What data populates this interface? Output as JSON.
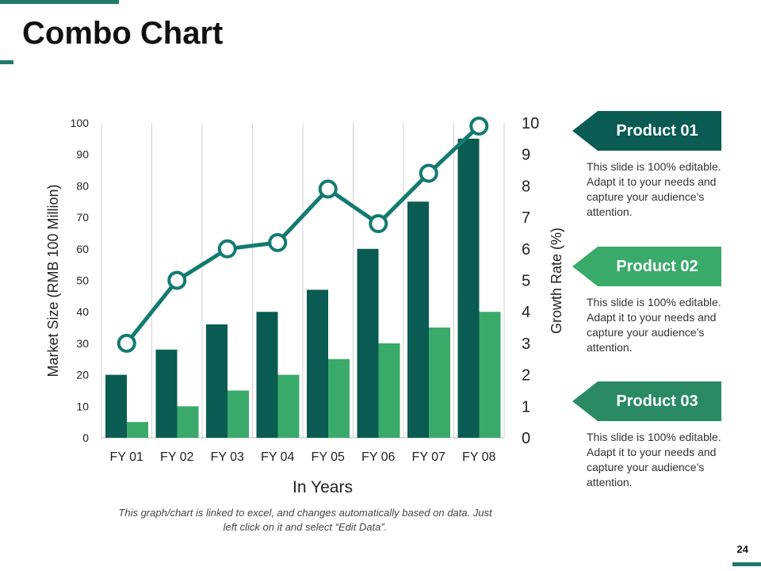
{
  "slide": {
    "title": "Combo Chart",
    "caption": "This graph/chart is linked to excel, and changes automatically based on data. Just left click on it and select “Edit Data”.",
    "page_number": "24"
  },
  "products": [
    {
      "label": "Product 01",
      "text": "This slide is 100% editable. Adapt it to your needs and capture your audience’s attention."
    },
    {
      "label": "Product 02",
      "text": "This slide is 100% editable. Adapt it to your needs and capture your audience’s attention."
    },
    {
      "label": "Product 03",
      "text": "This slide is 100% editable. Adapt it to your needs and capture your audience’s attention."
    }
  ],
  "colors": {
    "dark": "#0a5c52",
    "light": "#3aaa6a",
    "line": "#137a70",
    "accent": "#1e7b6b"
  },
  "chart_data": {
    "type": "bar",
    "title": "",
    "categories": [
      "FY 01",
      "FY 02",
      "FY 03",
      "FY 04",
      "FY 05",
      "FY 06",
      "FY 07",
      "FY 08"
    ],
    "series": [
      {
        "name": "Product 01",
        "type": "bar",
        "axis": "left",
        "values": [
          20,
          28,
          36,
          40,
          47,
          60,
          75,
          95
        ]
      },
      {
        "name": "Product 02",
        "type": "bar",
        "axis": "left",
        "values": [
          5,
          10,
          15,
          20,
          25,
          30,
          35,
          40
        ]
      },
      {
        "name": "Product 03",
        "type": "line",
        "axis": "right",
        "values": [
          3,
          5,
          6,
          6.2,
          7.9,
          6.8,
          8.4,
          9.9
        ]
      }
    ],
    "xlabel": "In Years",
    "ylabel": "Market Size (RMB 100 Million)",
    "y2label": "Growth Rate (%)",
    "ylim": [
      0,
      100
    ],
    "y2lim": [
      0,
      10
    ],
    "yticks": [
      0,
      10,
      20,
      30,
      40,
      50,
      60,
      70,
      80,
      90,
      100
    ],
    "y2ticks": [
      0,
      1,
      2,
      3,
      4,
      5,
      6,
      7,
      8,
      9,
      10
    ],
    "grid": "vertical"
  }
}
